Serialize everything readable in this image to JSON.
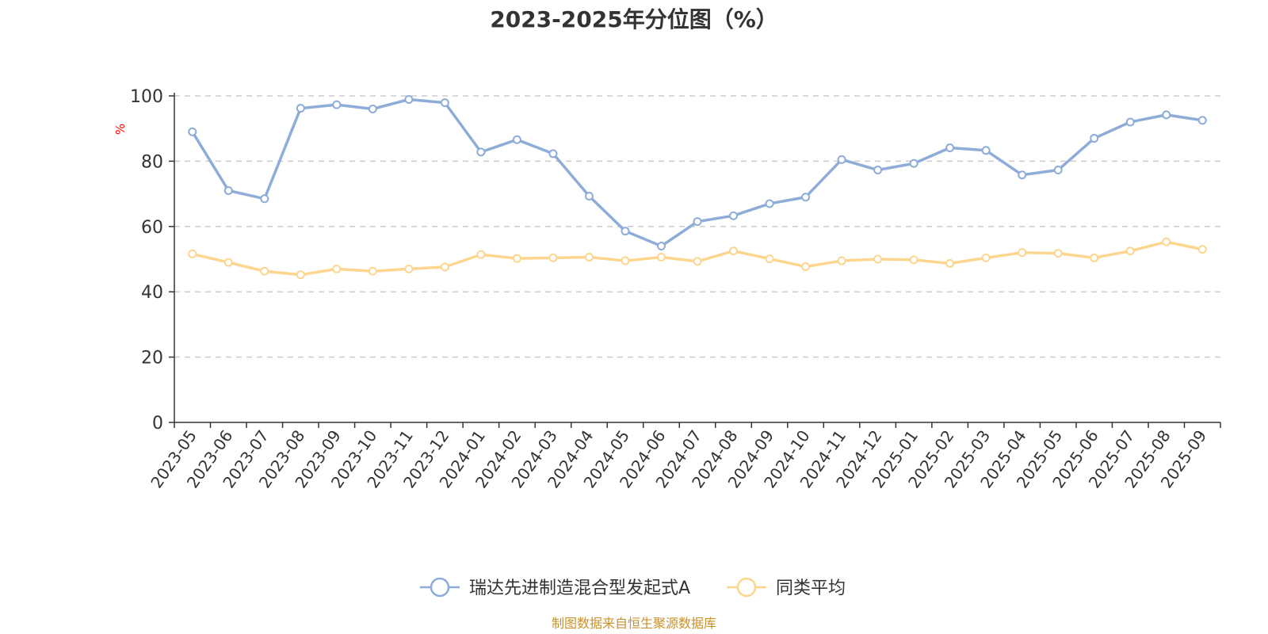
{
  "chart_data": {
    "type": "line",
    "title": "2023-2025年分位图（%）",
    "ylabel": "%",
    "xlabel": "",
    "ylim": [
      0,
      100
    ],
    "yticks": [
      0,
      20,
      40,
      60,
      80,
      100
    ],
    "grid": true,
    "legend_position": "bottom",
    "categories": [
      "2023-05",
      "2023-06",
      "2023-07",
      "2023-08",
      "2023-09",
      "2023-10",
      "2023-11",
      "2023-12",
      "2024-01",
      "2024-02",
      "2024-03",
      "2024-04",
      "2024-05",
      "2024-06",
      "2024-07",
      "2024-08",
      "2024-09",
      "2024-10",
      "2024-11",
      "2024-12",
      "2025-01",
      "2025-02",
      "2025-03",
      "2025-04",
      "2025-05",
      "2025-06",
      "2025-07",
      "2025-08",
      "2025-09"
    ],
    "series": [
      {
        "name": "瑞达先进制造混合型发起式A",
        "color": "#8eacd8",
        "values": [
          89,
          71,
          68.5,
          96.2,
          97.3,
          96,
          98.9,
          97.9,
          82.8,
          86.6,
          82.3,
          69.3,
          58.6,
          54,
          61.5,
          63.3,
          67,
          69,
          80.5,
          77.3,
          79.3,
          84.1,
          83.3,
          75.8,
          77.3,
          87,
          92,
          94.2,
          92.5
        ]
      },
      {
        "name": "同类平均",
        "color": "#fcd68f",
        "values": [
          51.6,
          49,
          46.3,
          45.2,
          47,
          46.3,
          47,
          47.6,
          51.4,
          50.2,
          50.4,
          50.6,
          49.5,
          50.6,
          49.3,
          52.5,
          50.1,
          47.7,
          49.5,
          50,
          49.8,
          48.7,
          50.4,
          52,
          51.8,
          50.4,
          52.5,
          55.3,
          53
        ]
      }
    ]
  },
  "source_note": "制图数据来自恒生聚源数据库"
}
